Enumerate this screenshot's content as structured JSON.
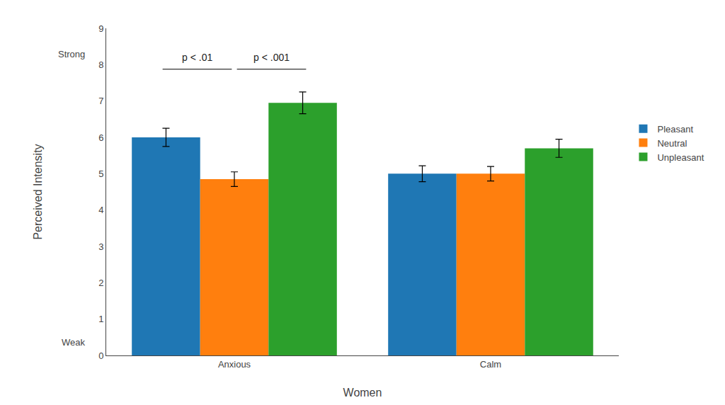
{
  "chart_data": {
    "type": "bar",
    "categories": [
      "Anxious",
      "Calm"
    ],
    "series": [
      {
        "name": "Pleasant",
        "values": [
          6.0,
          5.0
        ],
        "errors": [
          0.25,
          0.22
        ]
      },
      {
        "name": "Neutral",
        "values": [
          4.85,
          5.0
        ],
        "errors": [
          0.2,
          0.2
        ]
      },
      {
        "name": "Unpleasant",
        "values": [
          6.95,
          5.7
        ],
        "errors": [
          0.3,
          0.25
        ]
      }
    ],
    "xlabel": "Women",
    "ylabel": "Perceived Intensity",
    "annotations": [
      "p < .01",
      "p < .001",
      "Strong",
      "Weak"
    ],
    "ylim": [
      0,
      9
    ],
    "yticks": [
      0,
      1,
      2,
      3,
      4,
      5,
      6,
      7,
      8,
      9
    ],
    "grid": false,
    "legend": "right"
  }
}
